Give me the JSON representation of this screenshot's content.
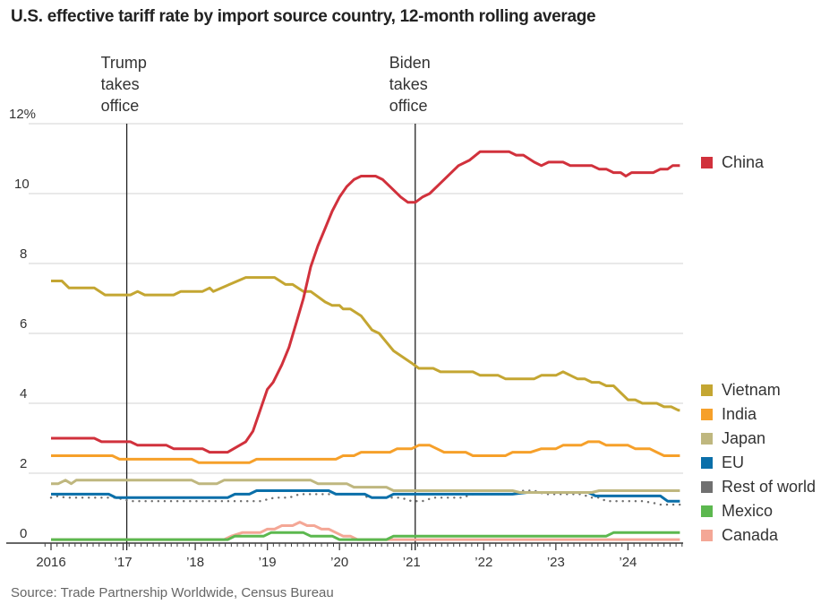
{
  "chart_data": {
    "type": "line",
    "title": "U.S. effective tariff rate by import source country, 12-month rolling average",
    "xlabel": "",
    "ylabel": "",
    "y_unit_suffix": "%",
    "xlim": [
      2015.95,
      2024.75
    ],
    "ylim": [
      0,
      12
    ],
    "y_ticks": [
      0,
      2,
      4,
      6,
      8,
      10,
      12
    ],
    "y_tick_labels": [
      "0",
      "2",
      "4",
      "6",
      "8",
      "10",
      "12%"
    ],
    "x_ticks": [
      2016,
      2017,
      2018,
      2019,
      2020,
      2021,
      2022,
      2023,
      2024
    ],
    "x_tick_labels": [
      "2016",
      "’17",
      "’18",
      "’19",
      "’20",
      "’21",
      "’22",
      "’23",
      "’24"
    ],
    "grid": true,
    "legend_placement": "right",
    "annotations": [
      {
        "x": 2017.05,
        "lines": [
          "Trump",
          "takes",
          "office"
        ]
      },
      {
        "x": 2021.05,
        "lines": [
          "Biden",
          "takes",
          "office"
        ]
      }
    ],
    "series": [
      {
        "name": "China",
        "color": "#d1313c",
        "dashed": false,
        "legend_group": "top",
        "points": [
          [
            2016.0,
            3.0
          ],
          [
            2016.6,
            3.0
          ],
          [
            2016.7,
            2.9
          ],
          [
            2017.1,
            2.9
          ],
          [
            2017.2,
            2.8
          ],
          [
            2017.6,
            2.8
          ],
          [
            2017.7,
            2.7
          ],
          [
            2018.1,
            2.7
          ],
          [
            2018.2,
            2.6
          ],
          [
            2018.45,
            2.6
          ],
          [
            2018.7,
            2.9
          ],
          [
            2018.8,
            3.2
          ],
          [
            2018.9,
            3.8
          ],
          [
            2019.0,
            4.4
          ],
          [
            2019.08,
            4.6
          ],
          [
            2019.2,
            5.1
          ],
          [
            2019.3,
            5.6
          ],
          [
            2019.4,
            6.3
          ],
          [
            2019.5,
            7.0
          ],
          [
            2019.6,
            7.9
          ],
          [
            2019.7,
            8.5
          ],
          [
            2019.8,
            9.0
          ],
          [
            2019.9,
            9.5
          ],
          [
            2020.0,
            9.9
          ],
          [
            2020.1,
            10.2
          ],
          [
            2020.2,
            10.4
          ],
          [
            2020.3,
            10.5
          ],
          [
            2020.5,
            10.5
          ],
          [
            2020.6,
            10.4
          ],
          [
            2020.7,
            10.2
          ],
          [
            2020.85,
            9.9
          ],
          [
            2020.95,
            9.75
          ],
          [
            2021.05,
            9.75
          ],
          [
            2021.15,
            9.9
          ],
          [
            2021.25,
            10.0
          ],
          [
            2021.4,
            10.3
          ],
          [
            2021.55,
            10.6
          ],
          [
            2021.65,
            10.8
          ],
          [
            2021.8,
            10.95
          ],
          [
            2021.95,
            11.2
          ],
          [
            2022.35,
            11.2
          ],
          [
            2022.45,
            11.1
          ],
          [
            2022.55,
            11.1
          ],
          [
            2022.7,
            10.9
          ],
          [
            2022.8,
            10.8
          ],
          [
            2022.9,
            10.9
          ],
          [
            2023.1,
            10.9
          ],
          [
            2023.2,
            10.8
          ],
          [
            2023.5,
            10.8
          ],
          [
            2023.6,
            10.7
          ],
          [
            2023.7,
            10.7
          ],
          [
            2023.8,
            10.6
          ],
          [
            2023.9,
            10.6
          ],
          [
            2023.97,
            10.5
          ],
          [
            2024.05,
            10.6
          ],
          [
            2024.35,
            10.6
          ],
          [
            2024.45,
            10.7
          ],
          [
            2024.55,
            10.7
          ],
          [
            2024.62,
            10.8
          ],
          [
            2024.72,
            10.8
          ]
        ]
      },
      {
        "name": "Vietnam",
        "color": "#c4a632",
        "dashed": false,
        "legend_group": "bottom",
        "points": [
          [
            2016.0,
            7.5
          ],
          [
            2016.15,
            7.5
          ],
          [
            2016.25,
            7.3
          ],
          [
            2016.6,
            7.3
          ],
          [
            2016.75,
            7.1
          ],
          [
            2017.1,
            7.1
          ],
          [
            2017.2,
            7.2
          ],
          [
            2017.3,
            7.1
          ],
          [
            2017.7,
            7.1
          ],
          [
            2017.8,
            7.2
          ],
          [
            2018.1,
            7.2
          ],
          [
            2018.2,
            7.3
          ],
          [
            2018.25,
            7.2
          ],
          [
            2018.7,
            7.6
          ],
          [
            2019.1,
            7.6
          ],
          [
            2019.25,
            7.4
          ],
          [
            2019.35,
            7.4
          ],
          [
            2019.5,
            7.2
          ],
          [
            2019.6,
            7.2
          ],
          [
            2019.8,
            6.9
          ],
          [
            2019.9,
            6.8
          ],
          [
            2020.0,
            6.8
          ],
          [
            2020.05,
            6.7
          ],
          [
            2020.15,
            6.7
          ],
          [
            2020.3,
            6.5
          ],
          [
            2020.45,
            6.1
          ],
          [
            2020.55,
            6.0
          ],
          [
            2020.75,
            5.5
          ],
          [
            2021.0,
            5.15
          ],
          [
            2021.1,
            5.0
          ],
          [
            2021.3,
            5.0
          ],
          [
            2021.4,
            4.9
          ],
          [
            2021.85,
            4.9
          ],
          [
            2021.95,
            4.8
          ],
          [
            2022.2,
            4.8
          ],
          [
            2022.3,
            4.7
          ],
          [
            2022.7,
            4.7
          ],
          [
            2022.8,
            4.8
          ],
          [
            2023.0,
            4.8
          ],
          [
            2023.1,
            4.9
          ],
          [
            2023.2,
            4.8
          ],
          [
            2023.3,
            4.7
          ],
          [
            2023.4,
            4.7
          ],
          [
            2023.5,
            4.6
          ],
          [
            2023.6,
            4.6
          ],
          [
            2023.7,
            4.5
          ],
          [
            2023.8,
            4.5
          ],
          [
            2024.0,
            4.1
          ],
          [
            2024.1,
            4.1
          ],
          [
            2024.2,
            4.0
          ],
          [
            2024.4,
            4.0
          ],
          [
            2024.5,
            3.9
          ],
          [
            2024.6,
            3.9
          ],
          [
            2024.7,
            3.8
          ],
          [
            2024.72,
            3.8
          ]
        ]
      },
      {
        "name": "India",
        "color": "#f6a02a",
        "dashed": false,
        "legend_group": "bottom",
        "points": [
          [
            2016.0,
            2.5
          ],
          [
            2016.85,
            2.5
          ],
          [
            2016.95,
            2.4
          ],
          [
            2017.95,
            2.4
          ],
          [
            2018.05,
            2.3
          ],
          [
            2018.75,
            2.3
          ],
          [
            2018.85,
            2.4
          ],
          [
            2019.95,
            2.4
          ],
          [
            2020.05,
            2.5
          ],
          [
            2020.2,
            2.5
          ],
          [
            2020.3,
            2.6
          ],
          [
            2020.7,
            2.6
          ],
          [
            2020.8,
            2.7
          ],
          [
            2021.0,
            2.7
          ],
          [
            2021.1,
            2.8
          ],
          [
            2021.25,
            2.8
          ],
          [
            2021.35,
            2.7
          ],
          [
            2021.45,
            2.6
          ],
          [
            2021.75,
            2.6
          ],
          [
            2021.85,
            2.5
          ],
          [
            2022.3,
            2.5
          ],
          [
            2022.4,
            2.6
          ],
          [
            2022.65,
            2.6
          ],
          [
            2022.8,
            2.7
          ],
          [
            2023.0,
            2.7
          ],
          [
            2023.1,
            2.8
          ],
          [
            2023.35,
            2.8
          ],
          [
            2023.45,
            2.9
          ],
          [
            2023.6,
            2.9
          ],
          [
            2023.7,
            2.8
          ],
          [
            2024.0,
            2.8
          ],
          [
            2024.1,
            2.7
          ],
          [
            2024.3,
            2.7
          ],
          [
            2024.4,
            2.6
          ],
          [
            2024.5,
            2.5
          ],
          [
            2024.72,
            2.5
          ]
        ]
      },
      {
        "name": "Japan",
        "color": "#bfb77f",
        "dashed": false,
        "legend_group": "bottom",
        "points": [
          [
            2016.0,
            1.7
          ],
          [
            2016.1,
            1.7
          ],
          [
            2016.2,
            1.8
          ],
          [
            2016.28,
            1.7
          ],
          [
            2016.35,
            1.8
          ],
          [
            2017.2,
            1.8
          ],
          [
            2017.55,
            1.8
          ],
          [
            2017.6,
            1.8
          ],
          [
            2017.95,
            1.8
          ],
          [
            2018.05,
            1.7
          ],
          [
            2018.3,
            1.7
          ],
          [
            2018.4,
            1.8
          ],
          [
            2019.6,
            1.8
          ],
          [
            2019.7,
            1.7
          ],
          [
            2020.1,
            1.7
          ],
          [
            2020.2,
            1.6
          ],
          [
            2020.65,
            1.6
          ],
          [
            2020.75,
            1.5
          ],
          [
            2022.4,
            1.5
          ],
          [
            2022.5,
            1.45
          ],
          [
            2023.5,
            1.45
          ],
          [
            2023.6,
            1.5
          ],
          [
            2024.72,
            1.5
          ]
        ]
      },
      {
        "name": "EU",
        "color": "#0a6fa9",
        "dashed": false,
        "legend_group": "bottom",
        "points": [
          [
            2016.0,
            1.4
          ],
          [
            2016.8,
            1.4
          ],
          [
            2016.9,
            1.3
          ],
          [
            2018.45,
            1.3
          ],
          [
            2018.55,
            1.4
          ],
          [
            2018.75,
            1.4
          ],
          [
            2018.85,
            1.5
          ],
          [
            2019.85,
            1.5
          ],
          [
            2019.95,
            1.4
          ],
          [
            2020.35,
            1.4
          ],
          [
            2020.45,
            1.3
          ],
          [
            2020.65,
            1.3
          ],
          [
            2020.75,
            1.4
          ],
          [
            2022.4,
            1.4
          ],
          [
            2022.6,
            1.45
          ],
          [
            2023.45,
            1.45
          ],
          [
            2023.55,
            1.35
          ],
          [
            2024.45,
            1.35
          ],
          [
            2024.55,
            1.2
          ],
          [
            2024.72,
            1.2
          ]
        ]
      },
      {
        "name": "Rest of world",
        "color": "#707070",
        "dashed": true,
        "legend_group": "bottom",
        "points": [
          [
            2016.0,
            1.3
          ],
          [
            2016.1,
            1.35
          ],
          [
            2016.2,
            1.3
          ],
          [
            2016.9,
            1.3
          ],
          [
            2017.0,
            1.25
          ],
          [
            2017.1,
            1.2
          ],
          [
            2018.9,
            1.2
          ],
          [
            2019.1,
            1.3
          ],
          [
            2019.3,
            1.3
          ],
          [
            2019.45,
            1.4
          ],
          [
            2020.3,
            1.4
          ],
          [
            2020.4,
            1.3
          ],
          [
            2020.7,
            1.3
          ],
          [
            2020.85,
            1.3
          ],
          [
            2021.0,
            1.2
          ],
          [
            2021.15,
            1.2
          ],
          [
            2021.3,
            1.3
          ],
          [
            2021.7,
            1.3
          ],
          [
            2021.85,
            1.4
          ],
          [
            2022.4,
            1.4
          ],
          [
            2022.55,
            1.5
          ],
          [
            2022.7,
            1.5
          ],
          [
            2022.85,
            1.4
          ],
          [
            2023.35,
            1.4
          ],
          [
            2023.5,
            1.3
          ],
          [
            2023.6,
            1.3
          ],
          [
            2023.7,
            1.2
          ],
          [
            2024.2,
            1.2
          ],
          [
            2024.35,
            1.15
          ],
          [
            2024.45,
            1.1
          ],
          [
            2024.72,
            1.1
          ]
        ]
      },
      {
        "name": "Mexico",
        "color": "#5cb84f",
        "dashed": false,
        "legend_group": "bottom",
        "points": [
          [
            2016.0,
            0.1
          ],
          [
            2018.45,
            0.1
          ],
          [
            2018.55,
            0.2
          ],
          [
            2018.95,
            0.2
          ],
          [
            2019.05,
            0.3
          ],
          [
            2019.5,
            0.3
          ],
          [
            2019.6,
            0.2
          ],
          [
            2019.9,
            0.2
          ],
          [
            2020.0,
            0.1
          ],
          [
            2020.65,
            0.1
          ],
          [
            2020.75,
            0.2
          ],
          [
            2023.7,
            0.2
          ],
          [
            2023.8,
            0.3
          ],
          [
            2024.72,
            0.3
          ]
        ]
      },
      {
        "name": "Canada",
        "color": "#f4a796",
        "dashed": false,
        "legend_group": "bottom",
        "points": [
          [
            2016.0,
            0.1
          ],
          [
            2018.4,
            0.1
          ],
          [
            2018.5,
            0.2
          ],
          [
            2018.65,
            0.3
          ],
          [
            2018.9,
            0.3
          ],
          [
            2019.0,
            0.4
          ],
          [
            2019.1,
            0.4
          ],
          [
            2019.2,
            0.5
          ],
          [
            2019.35,
            0.5
          ],
          [
            2019.45,
            0.6
          ],
          [
            2019.55,
            0.5
          ],
          [
            2019.65,
            0.5
          ],
          [
            2019.75,
            0.4
          ],
          [
            2019.85,
            0.4
          ],
          [
            2019.95,
            0.3
          ],
          [
            2020.05,
            0.2
          ],
          [
            2020.15,
            0.2
          ],
          [
            2020.25,
            0.1
          ],
          [
            2024.72,
            0.1
          ]
        ]
      }
    ],
    "source": "Source: Trade Partnership Worldwide, Census Bureau"
  }
}
